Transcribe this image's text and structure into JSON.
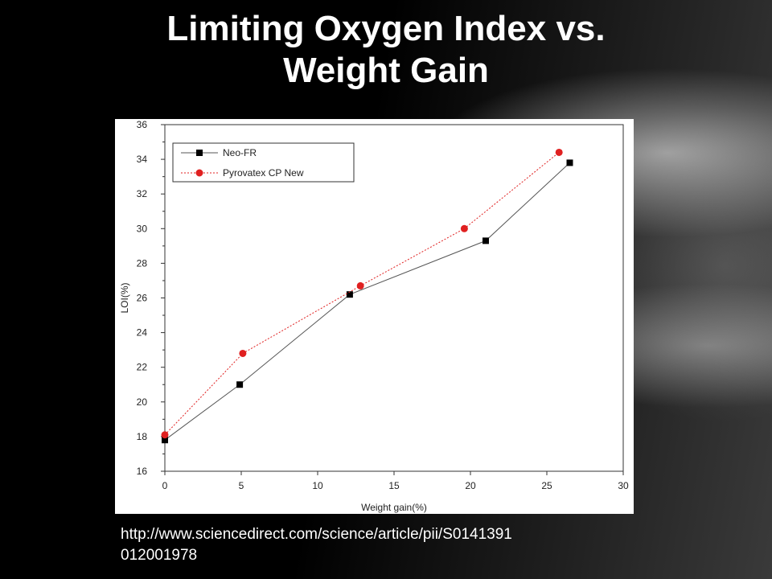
{
  "slide": {
    "title_line1": "Limiting Oxygen Index vs.",
    "title_line2": "Weight Gain",
    "source_line1": "http://www.sciencedirect.com/science/article/pii/S0141391",
    "source_line2": "012001978"
  },
  "chart_data": {
    "type": "line",
    "xlabel": "Weight gain(%)",
    "ylabel": "LOI(%)",
    "xlim": [
      0,
      30
    ],
    "ylim": [
      16,
      36
    ],
    "x_ticks": [
      0,
      5,
      10,
      15,
      20,
      25,
      30
    ],
    "y_ticks": [
      16,
      18,
      20,
      22,
      24,
      26,
      28,
      30,
      32,
      34,
      36
    ],
    "legend_position": "top-left",
    "grid": false,
    "series": [
      {
        "name": "Neo-FR",
        "color": "#000000",
        "marker": "square",
        "line_style": "solid",
        "x": [
          0,
          4.9,
          12.1,
          21.0,
          26.5
        ],
        "y": [
          17.8,
          21.0,
          26.2,
          29.3,
          33.8
        ]
      },
      {
        "name": "Pyrovatex CP New",
        "color": "#e02020",
        "marker": "circle",
        "line_style": "dotted",
        "x": [
          0,
          5.1,
          12.8,
          19.6,
          25.8
        ],
        "y": [
          18.1,
          22.8,
          26.7,
          30.0,
          34.4
        ]
      }
    ]
  }
}
